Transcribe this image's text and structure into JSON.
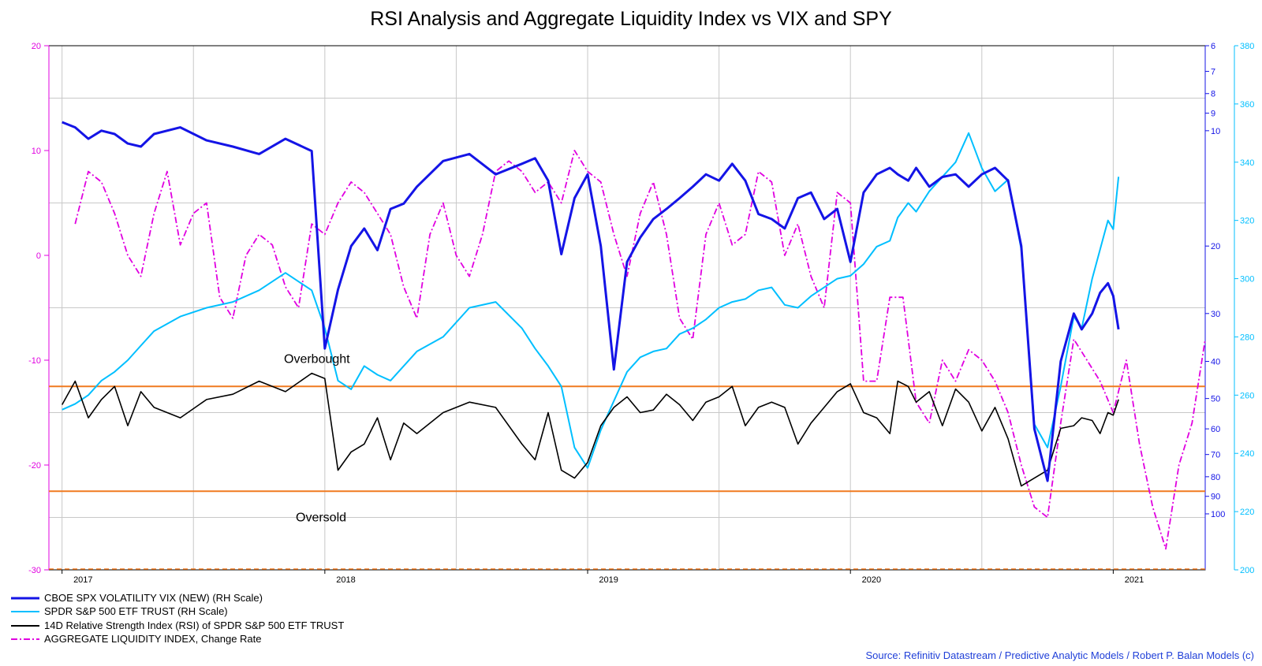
{
  "chart_data": {
    "type": "line",
    "title": "RSI Analysis and Aggregate Liquidity Index vs VIX and SPY",
    "source": "Source: Refinitiv Datastream / Predictive Analytic Models / Robert P. Balan Models (c)",
    "x_axis": {
      "range": [
        2016.95,
        2021.35
      ],
      "ticks": [
        "2017",
        "2018",
        "2019",
        "2020",
        "2021"
      ],
      "tick_values": [
        2017.0,
        2018.0,
        2019.0,
        2020.0,
        2021.0
      ]
    },
    "left_axis": {
      "range": [
        -30,
        20
      ],
      "ticks": [
        "-30",
        "-20",
        "-10",
        "0",
        "10",
        "20"
      ],
      "tick_values": [
        -30,
        -20,
        -10,
        0,
        10,
        20
      ],
      "color": "#e000e0"
    },
    "vix_axis": {
      "scale": "log-inverted",
      "range": [
        6,
        140
      ],
      "ticks": [
        "6",
        "7",
        "8",
        "9",
        "10",
        "20",
        "30",
        "40",
        "50",
        "60",
        "70",
        "80",
        "90",
        "100"
      ],
      "tick_values": [
        6,
        7,
        8,
        9,
        10,
        20,
        30,
        40,
        50,
        60,
        70,
        80,
        90,
        100
      ],
      "color": "#1414e6"
    },
    "spy_axis": {
      "range": [
        200,
        380
      ],
      "ticks": [
        "200",
        "220",
        "240",
        "260",
        "280",
        "300",
        "320",
        "340",
        "360",
        "380"
      ],
      "tick_values": [
        200,
        220,
        240,
        260,
        280,
        300,
        320,
        340,
        360,
        380
      ],
      "color": "#00bfff"
    },
    "annotations": [
      {
        "text": "Overbought",
        "level": 70
      },
      {
        "text": "Oversold",
        "level": 30
      }
    ],
    "series": [
      {
        "name": "CBOE SPX VOLATILITY VIX (NEW) (RH Scale)",
        "color": "#1414e6",
        "axis": "vix",
        "x": [
          2017.0,
          2017.05,
          2017.1,
          2017.15,
          2017.2,
          2017.25,
          2017.3,
          2017.35,
          2017.45,
          2017.55,
          2017.65,
          2017.75,
          2017.85,
          2017.95,
          2018.0,
          2018.05,
          2018.1,
          2018.15,
          2018.2,
          2018.25,
          2018.3,
          2018.35,
          2018.45,
          2018.55,
          2018.65,
          2018.75,
          2018.8,
          2018.85,
          2018.9,
          2018.95,
          2019.0,
          2019.05,
          2019.1,
          2019.15,
          2019.2,
          2019.25,
          2019.3,
          2019.35,
          2019.4,
          2019.45,
          2019.5,
          2019.55,
          2019.6,
          2019.65,
          2019.7,
          2019.75,
          2019.8,
          2019.85,
          2019.9,
          2019.95,
          2020.0,
          2020.05,
          2020.1,
          2020.15,
          2020.18,
          2020.22,
          2020.25,
          2020.3,
          2020.35,
          2020.4,
          2020.45,
          2020.5,
          2020.55,
          2020.6,
          2020.65,
          2020.7,
          2020.75,
          2020.8,
          2020.85,
          2020.88,
          2020.92,
          2020.95,
          2020.98,
          2021.0,
          2021.02
        ],
        "values": [
          9.5,
          9.8,
          10.5,
          10.0,
          10.2,
          10.8,
          11.0,
          10.2,
          9.8,
          10.6,
          11.0,
          11.5,
          10.5,
          11.3,
          37.0,
          26.0,
          20.0,
          18.0,
          20.5,
          16.0,
          15.5,
          14.0,
          12.0,
          11.5,
          13.0,
          12.2,
          11.8,
          13.5,
          21.0,
          15.0,
          13.0,
          20.0,
          42.0,
          22.0,
          19.0,
          17.0,
          16.0,
          15.0,
          14.0,
          13.0,
          13.5,
          12.2,
          13.5,
          16.5,
          17.0,
          18.0,
          15.0,
          14.5,
          17.0,
          16.0,
          22.0,
          14.5,
          13.0,
          12.5,
          13.0,
          13.5,
          12.5,
          14.0,
          13.2,
          13.0,
          14.0,
          13.0,
          12.5,
          13.5,
          20.0,
          60.0,
          82.0,
          40.0,
          30.0,
          33.0,
          30.0,
          26.5,
          25.0,
          27.0,
          33.0
        ]
      },
      {
        "name": "SPDR S&P 500 ETF TRUST (RH Scale)",
        "color": "#00bfff",
        "axis": "spy",
        "x": [
          2017.0,
          2017.05,
          2017.1,
          2017.15,
          2017.2,
          2017.25,
          2017.3,
          2017.35,
          2017.45,
          2017.55,
          2017.65,
          2017.75,
          2017.85,
          2017.95,
          2018.0,
          2018.05,
          2018.1,
          2018.15,
          2018.2,
          2018.25,
          2018.3,
          2018.35,
          2018.45,
          2018.55,
          2018.65,
          2018.75,
          2018.8,
          2018.85,
          2018.9,
          2018.95,
          2019.0,
          2019.05,
          2019.1,
          2019.15,
          2019.2,
          2019.25,
          2019.3,
          2019.35,
          2019.4,
          2019.45,
          2019.5,
          2019.55,
          2019.6,
          2019.65,
          2019.7,
          2019.75,
          2019.8,
          2019.85,
          2019.9,
          2019.95,
          2020.0,
          2020.05,
          2020.1,
          2020.15,
          2020.18,
          2020.22,
          2020.25,
          2020.3,
          2020.35,
          2020.4,
          2020.45,
          2020.5,
          2020.55,
          2020.6,
          2020.65,
          2020.7,
          2020.75,
          2020.8,
          2020.85,
          2020.88,
          2020.92,
          2020.95,
          2020.98,
          2021.0,
          2021.02
        ],
        "values": [
          255,
          257,
          260,
          265,
          268,
          272,
          277,
          282,
          287,
          290,
          292,
          296,
          302,
          296,
          283,
          265,
          262,
          270,
          267,
          265,
          270,
          275,
          280,
          290,
          292,
          283,
          276,
          270,
          263,
          242,
          235,
          248,
          258,
          268,
          273,
          275,
          276,
          281,
          283,
          286,
          290,
          292,
          293,
          296,
          297,
          291,
          290,
          294,
          297,
          300,
          301,
          305,
          311,
          313,
          321,
          326,
          323,
          330,
          335,
          340,
          350,
          338,
          330,
          334,
          310,
          250,
          242,
          263,
          287,
          283,
          300,
          310,
          320,
          317,
          335
        ]
      },
      {
        "name": "14D Relative Strength Index (RSI) of SPDR S&P 500 ETF TRUST",
        "color": "#000000",
        "axis": "rsi",
        "x": [
          2017.0,
          2017.05,
          2017.1,
          2017.15,
          2017.2,
          2017.25,
          2017.3,
          2017.35,
          2017.45,
          2017.55,
          2017.65,
          2017.75,
          2017.85,
          2017.95,
          2018.0,
          2018.05,
          2018.1,
          2018.15,
          2018.2,
          2018.25,
          2018.3,
          2018.35,
          2018.45,
          2018.55,
          2018.65,
          2018.75,
          2018.8,
          2018.85,
          2018.9,
          2018.95,
          2019.0,
          2019.05,
          2019.1,
          2019.15,
          2019.2,
          2019.25,
          2019.3,
          2019.35,
          2019.4,
          2019.45,
          2019.5,
          2019.55,
          2019.6,
          2019.65,
          2019.7,
          2019.75,
          2019.8,
          2019.85,
          2019.9,
          2019.95,
          2020.0,
          2020.05,
          2020.1,
          2020.15,
          2020.18,
          2020.22,
          2020.25,
          2020.3,
          2020.35,
          2020.4,
          2020.45,
          2020.5,
          2020.55,
          2020.6,
          2020.65,
          2020.7,
          2020.75,
          2020.8,
          2020.85,
          2020.88,
          2020.92,
          2020.95,
          2020.98,
          2021.0,
          2021.02
        ],
        "values": [
          63,
          72,
          58,
          65,
          70,
          55,
          68,
          62,
          58,
          65,
          67,
          72,
          68,
          75,
          73,
          38,
          45,
          48,
          58,
          42,
          56,
          52,
          60,
          64,
          62,
          48,
          42,
          60,
          38,
          35,
          41,
          55,
          62,
          66,
          60,
          61,
          67,
          63,
          57,
          64,
          66,
          70,
          55,
          62,
          64,
          62,
          48,
          56,
          62,
          68,
          71,
          60,
          58,
          52,
          72,
          70,
          64,
          68,
          55,
          69,
          64,
          53,
          62,
          50,
          32,
          35,
          38,
          54,
          55,
          58,
          57,
          52,
          60,
          59,
          65
        ]
      },
      {
        "name": "AGGREGATE LIQUIDITY INDEX, Change Rate",
        "color": "#e000e0",
        "axis": "left",
        "style": "dash-dot",
        "x": [
          2017.05,
          2017.1,
          2017.15,
          2017.2,
          2017.25,
          2017.3,
          2017.35,
          2017.4,
          2017.45,
          2017.5,
          2017.55,
          2017.6,
          2017.65,
          2017.7,
          2017.75,
          2017.8,
          2017.85,
          2017.9,
          2017.95,
          2018.0,
          2018.05,
          2018.1,
          2018.15,
          2018.2,
          2018.25,
          2018.3,
          2018.35,
          2018.4,
          2018.45,
          2018.5,
          2018.55,
          2018.6,
          2018.65,
          2018.7,
          2018.75,
          2018.8,
          2018.85,
          2018.9,
          2018.95,
          2019.0,
          2019.05,
          2019.1,
          2019.15,
          2019.2,
          2019.25,
          2019.3,
          2019.35,
          2019.4,
          2019.45,
          2019.5,
          2019.55,
          2019.6,
          2019.65,
          2019.7,
          2019.75,
          2019.8,
          2019.85,
          2019.9,
          2019.95,
          2020.0,
          2020.05,
          2020.1,
          2020.15,
          2020.2,
          2020.25,
          2020.3,
          2020.35,
          2020.4,
          2020.45,
          2020.5,
          2020.55,
          2020.6,
          2020.65,
          2020.7,
          2020.75,
          2020.8,
          2020.85,
          2020.9,
          2020.95,
          2021.0,
          2021.05,
          2021.1,
          2021.15,
          2021.2,
          2021.25,
          2021.3,
          2021.35
        ],
        "values": [
          3,
          8,
          7,
          4,
          0,
          -2,
          4,
          8,
          1,
          4,
          5,
          -4,
          -6,
          0,
          2,
          1,
          -3,
          -5,
          3,
          2,
          5,
          7,
          6,
          4,
          2,
          -3,
          -6,
          2,
          5,
          0,
          -2,
          2,
          8,
          9,
          8,
          6,
          7,
          5,
          10,
          8,
          7,
          2,
          -2,
          4,
          7,
          2,
          -6,
          -8,
          2,
          5,
          1,
          2,
          8,
          7,
          0,
          3,
          -2,
          -5,
          6,
          5,
          -12,
          -12,
          -4,
          -4,
          -14,
          -16,
          -10,
          -12,
          -9,
          -10,
          -12,
          -15,
          -20,
          -24,
          -25,
          -16,
          -8,
          -10,
          -12,
          -15,
          -10,
          -18,
          -24,
          -28,
          -20,
          -16,
          -8
        ]
      }
    ],
    "legend_placement": "bottom-left"
  }
}
